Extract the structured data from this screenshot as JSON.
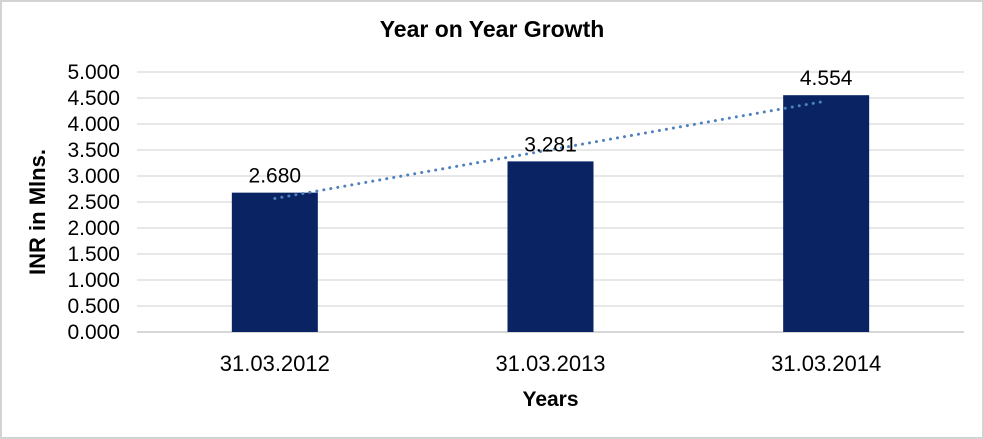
{
  "chart_data": {
    "type": "bar",
    "title": "Year on Year Growth",
    "xlabel": "Years",
    "ylabel": "INR in Mlns.",
    "categories": [
      "31.03.2012",
      "31.03.2013",
      "31.03.2014"
    ],
    "series": [
      {
        "name": "INR in Mlns.",
        "values": [
          2.68,
          3.281,
          4.554
        ]
      }
    ],
    "value_labels": [
      "2.680",
      "3.281",
      "4.554"
    ],
    "y_ticks": [
      "5.000",
      "4.500",
      "4.000",
      "3.500",
      "3.000",
      "2.500",
      "2.000",
      "1.500",
      "1.000",
      "0.500",
      "0.000"
    ],
    "ylim": [
      0,
      5
    ],
    "grid": true,
    "legend": "none",
    "trendline": {
      "type": "linear",
      "style": "dotted"
    },
    "colors": {
      "bar": "#0a2363",
      "trendline": "#4f81bd",
      "gridline": "#d9d9d9",
      "axis_line": "#bfbfbf",
      "text": "#000000",
      "frame_border": "#d3d3d3",
      "background": "#ffffff"
    }
  }
}
